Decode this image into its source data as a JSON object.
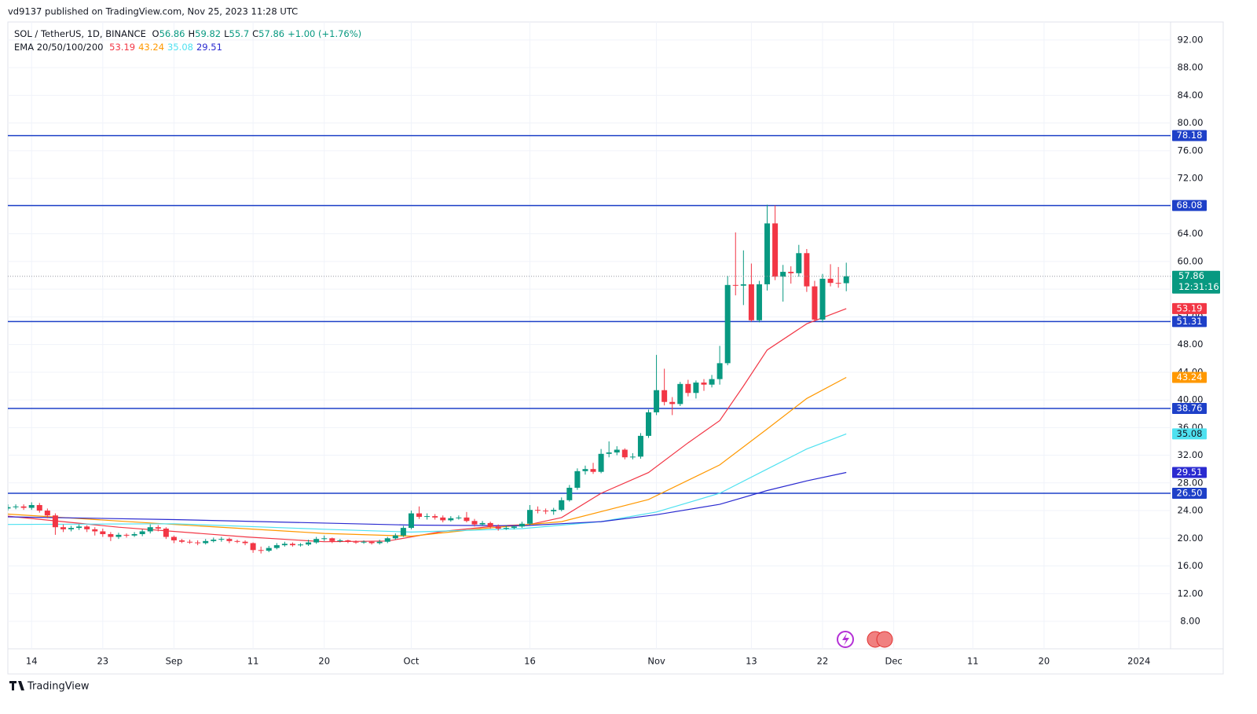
{
  "chart_data": {
    "type": "candlestick",
    "header": "vd9137 published on TradingView.com, Nov 25, 2023 11:28 UTC",
    "symbol": "SOL / TetherUS, 1D, BINANCE",
    "ohlc_prefixes": [
      "O",
      "H",
      "L",
      "C"
    ],
    "change": "+1.00 (+1.76%)",
    "indicator": "EMA 20/50/100/200",
    "countdown": "12:31:16",
    "logo": "TradingView",
    "up_color": "#089981",
    "down_color": "#f23645",
    "grid": true,
    "x": [
      "2023-08-11",
      "2023-08-12",
      "2023-08-13",
      "2023-08-14",
      "2023-08-15",
      "2023-08-16",
      "2023-08-17",
      "2023-08-18",
      "2023-08-19",
      "2023-08-20",
      "2023-08-21",
      "2023-08-22",
      "2023-08-23",
      "2023-08-24",
      "2023-08-25",
      "2023-08-26",
      "2023-08-27",
      "2023-08-28",
      "2023-08-29",
      "2023-08-30",
      "2023-08-31",
      "2023-09-01",
      "2023-09-02",
      "2023-09-03",
      "2023-09-04",
      "2023-09-05",
      "2023-09-06",
      "2023-09-07",
      "2023-09-08",
      "2023-09-09",
      "2023-09-10",
      "2023-09-11",
      "2023-09-12",
      "2023-09-13",
      "2023-09-14",
      "2023-09-15",
      "2023-09-16",
      "2023-09-17",
      "2023-09-18",
      "2023-09-19",
      "2023-09-20",
      "2023-09-21",
      "2023-09-22",
      "2023-09-23",
      "2023-09-24",
      "2023-09-25",
      "2023-09-26",
      "2023-09-27",
      "2023-09-28",
      "2023-09-29",
      "2023-09-30",
      "2023-10-01",
      "2023-10-02",
      "2023-10-03",
      "2023-10-04",
      "2023-10-05",
      "2023-10-06",
      "2023-10-07",
      "2023-10-08",
      "2023-10-09",
      "2023-10-10",
      "2023-10-11",
      "2023-10-12",
      "2023-10-13",
      "2023-10-14",
      "2023-10-15",
      "2023-10-16",
      "2023-10-17",
      "2023-10-18",
      "2023-10-19",
      "2023-10-20",
      "2023-10-21",
      "2023-10-22",
      "2023-10-23",
      "2023-10-24",
      "2023-10-25",
      "2023-10-26",
      "2023-10-27",
      "2023-10-28",
      "2023-10-29",
      "2023-10-30",
      "2023-10-31",
      "2023-11-01",
      "2023-11-02",
      "2023-11-03",
      "2023-11-04",
      "2023-11-05",
      "2023-11-06",
      "2023-11-07",
      "2023-11-08",
      "2023-11-09",
      "2023-11-10",
      "2023-11-11",
      "2023-11-12",
      "2023-11-13",
      "2023-11-14",
      "2023-11-15",
      "2023-11-16",
      "2023-11-17",
      "2023-11-18",
      "2023-11-19",
      "2023-11-20",
      "2023-11-21",
      "2023-11-22",
      "2023-11-23",
      "2023-11-24",
      "2023-11-25"
    ],
    "open": [
      24.3,
      24.5,
      24.6,
      24.4,
      24.8,
      24.0,
      23.3,
      21.6,
      21.3,
      21.5,
      21.7,
      21.3,
      21.0,
      20.6,
      20.2,
      20.5,
      20.4,
      20.6,
      21.0,
      21.6,
      21.4,
      20.2,
      19.7,
      19.5,
      19.4,
      19.3,
      19.6,
      19.8,
      19.9,
      19.6,
      19.5,
      19.3,
      18.3,
      18.2,
      18.6,
      19.0,
      19.2,
      19.0,
      19.1,
      19.4,
      19.9,
      20.0,
      19.6,
      19.7,
      19.5,
      19.4,
      19.5,
      19.3,
      19.5,
      20.0,
      20.4,
      21.5,
      23.6,
      23.1,
      23.2,
      23.0,
      22.6,
      22.9,
      23.0,
      22.5,
      22.0,
      22.2,
      21.7,
      21.4,
      21.5,
      21.7,
      22.1,
      24.1,
      24.0,
      23.9,
      24.1,
      25.5,
      27.3,
      29.7,
      30.0,
      29.6,
      32.2,
      32.4,
      32.8,
      31.7,
      31.8,
      34.8,
      38.2,
      41.4,
      39.7,
      39.4,
      42.3,
      41.0,
      42.5,
      42.2,
      43.0,
      45.3,
      56.6,
      56.5,
      56.7,
      51.5,
      56.7,
      65.5,
      57.8,
      58.5,
      58.3,
      61.2,
      56.4,
      51.6,
      57.5,
      56.9,
      56.86
    ],
    "high": [
      24.9,
      24.9,
      24.9,
      25.2,
      25.1,
      24.3,
      23.6,
      22.0,
      21.8,
      22.0,
      21.9,
      21.6,
      21.4,
      20.9,
      20.8,
      20.7,
      20.9,
      21.3,
      22.0,
      21.9,
      21.6,
      20.4,
      19.9,
      19.8,
      19.7,
      19.9,
      20.1,
      20.2,
      20.1,
      19.8,
      19.7,
      19.4,
      18.8,
      18.9,
      19.3,
      19.5,
      19.4,
      19.3,
      19.8,
      20.2,
      20.4,
      20.1,
      19.9,
      19.8,
      19.7,
      19.7,
      19.6,
      19.8,
      20.2,
      20.7,
      21.8,
      24.0,
      24.6,
      23.6,
      23.5,
      23.3,
      23.2,
      23.3,
      23.8,
      22.8,
      22.5,
      22.4,
      22.0,
      21.9,
      21.9,
      22.4,
      24.8,
      24.6,
      24.3,
      24.4,
      25.9,
      27.7,
      30.1,
      30.5,
      30.9,
      32.9,
      34.0,
      33.3,
      33.0,
      32.3,
      35.2,
      38.6,
      46.5,
      44.5,
      40.4,
      42.6,
      42.9,
      42.8,
      43.0,
      43.6,
      47.8,
      57.9,
      64.2,
      61.6,
      59.7,
      57.2,
      68.2,
      68.1,
      59.5,
      59.3,
      62.4,
      61.8,
      57.2,
      58.2,
      59.6,
      59.2,
      59.82
    ],
    "low": [
      24.0,
      24.2,
      24.1,
      24.1,
      23.7,
      22.9,
      20.5,
      20.9,
      21.0,
      21.2,
      20.9,
      20.4,
      20.2,
      19.6,
      19.9,
      20.1,
      20.2,
      20.3,
      20.7,
      21.0,
      19.9,
      19.3,
      19.3,
      19.2,
      19.0,
      19.1,
      19.4,
      19.5,
      19.3,
      19.3,
      19.0,
      17.9,
      17.8,
      18.0,
      18.4,
      18.8,
      18.8,
      18.8,
      18.9,
      19.2,
      19.6,
      19.3,
      19.4,
      19.3,
      19.2,
      19.2,
      19.1,
      19.1,
      19.3,
      19.8,
      20.2,
      21.3,
      22.8,
      22.7,
      22.7,
      22.3,
      22.4,
      22.7,
      22.3,
      21.7,
      21.8,
      21.4,
      21.1,
      21.2,
      21.3,
      21.5,
      21.9,
      23.6,
      23.5,
      23.4,
      23.9,
      25.3,
      27.0,
      29.2,
      29.3,
      29.4,
      31.7,
      32.0,
      31.4,
      31.4,
      31.5,
      34.5,
      37.8,
      39.2,
      37.8,
      39.1,
      40.5,
      40.2,
      41.3,
      41.8,
      42.2,
      45.0,
      55.1,
      53.7,
      51.3,
      51.2,
      55.8,
      57.3,
      54.2,
      56.8,
      57.8,
      55.6,
      51.3,
      51.2,
      56.4,
      56.2,
      55.7
    ],
    "close": [
      24.5,
      24.6,
      24.4,
      24.8,
      24.0,
      23.3,
      21.6,
      21.3,
      21.5,
      21.7,
      21.3,
      21.0,
      20.6,
      20.2,
      20.5,
      20.4,
      20.6,
      21.0,
      21.6,
      21.4,
      20.2,
      19.7,
      19.5,
      19.4,
      19.3,
      19.6,
      19.8,
      19.9,
      19.6,
      19.5,
      19.3,
      18.3,
      18.2,
      18.6,
      19.0,
      19.2,
      19.0,
      19.1,
      19.4,
      19.9,
      20.0,
      19.6,
      19.7,
      19.5,
      19.4,
      19.5,
      19.3,
      19.5,
      20.0,
      20.4,
      21.5,
      23.6,
      23.1,
      23.2,
      23.0,
      22.6,
      22.9,
      23.0,
      22.5,
      22.0,
      22.2,
      21.7,
      21.4,
      21.5,
      21.7,
      22.1,
      24.1,
      24.0,
      23.9,
      24.1,
      25.5,
      27.3,
      29.7,
      30.0,
      29.6,
      32.2,
      32.4,
      32.8,
      31.7,
      31.8,
      34.8,
      38.2,
      41.4,
      39.7,
      39.4,
      42.3,
      41.0,
      42.5,
      42.2,
      43.0,
      45.3,
      56.6,
      56.5,
      56.7,
      51.5,
      56.7,
      65.5,
      57.8,
      58.5,
      58.3,
      61.2,
      56.4,
      51.6,
      57.5,
      56.9,
      56.86,
      57.86
    ],
    "ema": [
      {
        "color": "#f23645",
        "x": [
          "2023-08-11",
          "2023-08-25",
          "2023-09-10",
          "2023-09-20",
          "2023-09-28",
          "2023-10-05",
          "2023-10-12",
          "2023-10-16",
          "2023-10-20",
          "2023-10-25",
          "2023-10-31",
          "2023-11-05",
          "2023-11-09",
          "2023-11-12",
          "2023-11-15",
          "2023-11-20",
          "2023-11-25"
        ],
        "values": [
          23.2,
          21.6,
          20.2,
          19.5,
          19.6,
          21.0,
          21.8,
          22.0,
          23.0,
          26.5,
          29.5,
          33.8,
          37.0,
          42.0,
          47.2,
          51.0,
          53.19
        ]
      },
      {
        "color": "#ff9800",
        "x": [
          "2023-08-11",
          "2023-09-01",
          "2023-09-20",
          "2023-10-01",
          "2023-10-10",
          "2023-10-20",
          "2023-10-31",
          "2023-11-09",
          "2023-11-15",
          "2023-11-20",
          "2023-11-25"
        ],
        "values": [
          23.5,
          22.0,
          20.7,
          20.3,
          21.4,
          22.4,
          25.6,
          30.6,
          35.8,
          40.2,
          43.24
        ]
      },
      {
        "color": "#4ee1f0",
        "x": [
          "2023-08-11",
          "2023-09-01",
          "2023-09-20",
          "2023-10-01",
          "2023-10-15",
          "2023-10-25",
          "2023-11-01",
          "2023-11-09",
          "2023-11-15",
          "2023-11-20",
          "2023-11-25"
        ],
        "values": [
          22.0,
          22.1,
          21.3,
          20.9,
          21.4,
          22.4,
          23.8,
          26.5,
          30.0,
          32.9,
          35.08
        ]
      },
      {
        "color": "#2a2ad0",
        "x": [
          "2023-08-11",
          "2023-09-01",
          "2023-10-01",
          "2023-10-15",
          "2023-10-25",
          "2023-11-01",
          "2023-11-09",
          "2023-11-15",
          "2023-11-20",
          "2023-11-25"
        ],
        "values": [
          23.1,
          22.7,
          21.9,
          21.8,
          22.4,
          23.4,
          24.9,
          26.9,
          28.3,
          29.51
        ]
      }
    ],
    "ema_label_text": [
      "#ffffff",
      "#ffffff",
      "#131722",
      "#ffffff"
    ],
    "levels": {
      "color": "#1e40c8",
      "values": [
        78.18,
        68.08,
        51.31,
        38.76,
        26.5
      ],
      "value_labels": [
        "78.18",
        "68.08",
        "51.31",
        "38.76",
        "26.50"
      ]
    },
    "ylim": [
      4.03,
      94.6
    ],
    "yticks": [
      {
        "value": 8,
        "label": "8.00"
      },
      {
        "value": 12,
        "label": "12.00"
      },
      {
        "value": 16,
        "label": "16.00"
      },
      {
        "value": 20,
        "label": "20.00"
      },
      {
        "value": 24,
        "label": "24.00"
      },
      {
        "value": 28,
        "label": "28.00"
      },
      {
        "value": 32,
        "label": "32.00"
      },
      {
        "value": 36,
        "label": "36.00"
      },
      {
        "value": 40,
        "label": "40.00"
      },
      {
        "value": 44,
        "label": "44.00"
      },
      {
        "value": 48,
        "label": "48.00"
      },
      {
        "value": 52,
        "label": "52.00"
      },
      {
        "value": 56,
        "label": "56.00"
      },
      {
        "value": 60,
        "label": "60.00"
      },
      {
        "value": 64,
        "label": "64.00"
      },
      {
        "value": 68,
        "label": "68.00"
      },
      {
        "value": 72,
        "label": "72.00"
      },
      {
        "value": 76,
        "label": "76.00"
      },
      {
        "value": 80,
        "label": "80.00"
      },
      {
        "value": 84,
        "label": "84.00"
      },
      {
        "value": 88,
        "label": "88.00"
      },
      {
        "value": 92,
        "label": "92.00"
      }
    ],
    "xlim": [
      "2023-08-11",
      "2024-01-05"
    ],
    "xticks": [
      {
        "value": "2023-08-14",
        "label": "14"
      },
      {
        "value": "2023-08-23",
        "label": "23"
      },
      {
        "value": "2023-09-01",
        "label": "Sep"
      },
      {
        "value": "2023-09-11",
        "label": "11"
      },
      {
        "value": "2023-09-20",
        "label": "20"
      },
      {
        "value": "2023-10-01",
        "label": "Oct"
      },
      {
        "value": "2023-10-16",
        "label": "16"
      },
      {
        "value": "2023-11-01",
        "label": "Nov"
      },
      {
        "value": "2023-11-13",
        "label": "13"
      },
      {
        "value": "2023-11-22",
        "label": "22"
      },
      {
        "value": "2023-12-01",
        "label": "Dec"
      },
      {
        "value": "2023-12-11",
        "label": "11"
      },
      {
        "value": "2023-12-20",
        "label": "20"
      },
      {
        "value": "2024-01-01",
        "label": "2024"
      }
    ]
  }
}
